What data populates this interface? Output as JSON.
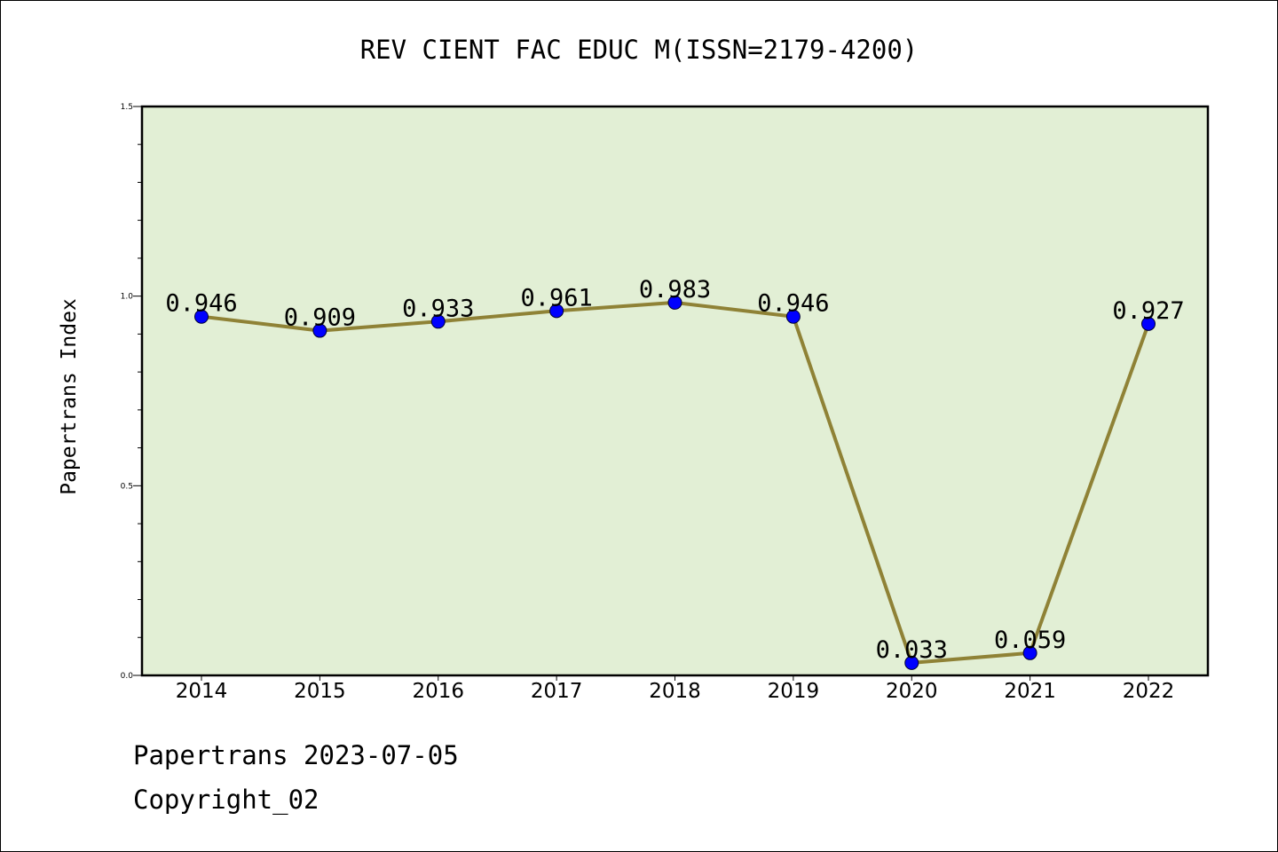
{
  "chart_data": {
    "type": "line",
    "title": "REV CIENT FAC EDUC M(ISSN=2179-4200)",
    "xlabel": "",
    "ylabel": "Papertrans Index",
    "categories": [
      "2014",
      "2015",
      "2016",
      "2017",
      "2018",
      "2019",
      "2020",
      "2021",
      "2022"
    ],
    "values": [
      0.946,
      0.909,
      0.933,
      0.961,
      0.983,
      0.946,
      0.033,
      0.059,
      0.927
    ],
    "data_labels": [
      "0.946",
      "0.909",
      "0.933",
      "0.961",
      "0.983",
      "0.946",
      "0.033",
      "0.059",
      "0.927"
    ],
    "ylim": [
      0,
      1.5
    ],
    "y_ticks": [
      "0.0",
      "0.5",
      "1.0",
      "1.5"
    ],
    "grid": false,
    "legend": "none",
    "colors": {
      "plot_background": "#e2efd5",
      "line": "#8f8236",
      "marker": "#0000ff"
    }
  },
  "footer": {
    "line1": "Papertrans 2023-07-05",
    "line2": "Copyright_02"
  }
}
